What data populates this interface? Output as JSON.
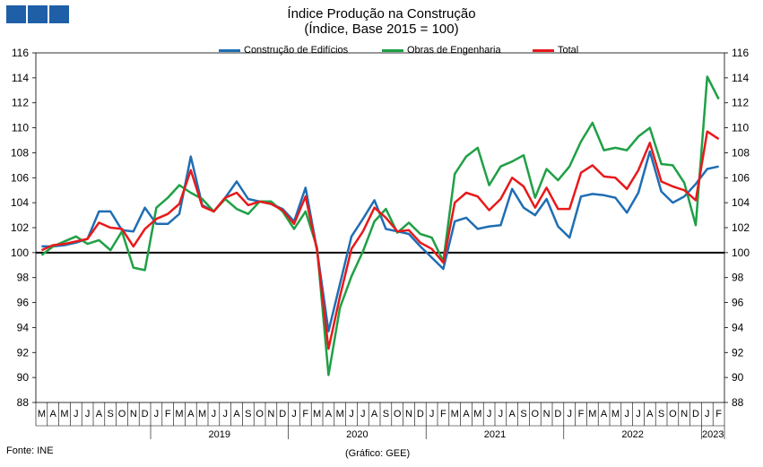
{
  "logo": {
    "color": "#1f5fa8",
    "squares": 3
  },
  "chart_data": {
    "type": "line",
    "title": "Índice Produção na Construção",
    "subtitle": "(Índice, Base 2015 = 100)",
    "ylim": [
      88,
      116
    ],
    "yticks": [
      "88",
      "90",
      "92",
      "94",
      "96",
      "98",
      "100",
      "102",
      "104",
      "106",
      "108",
      "110",
      "112",
      "114",
      "116"
    ],
    "reference_line": 100,
    "month_labels": [
      "M",
      "A",
      "M",
      "J",
      "J",
      "A",
      "S",
      "O",
      "N",
      "D",
      "J",
      "F",
      "M",
      "A",
      "M",
      "J",
      "J",
      "A",
      "S",
      "O",
      "N",
      "D",
      "J",
      "F",
      "M",
      "A",
      "M",
      "J",
      "J",
      "A",
      "S",
      "O",
      "N",
      "D",
      "J",
      "F",
      "M",
      "A",
      "M",
      "J",
      "J",
      "A",
      "S",
      "O",
      "N",
      "D",
      "J",
      "F",
      "M",
      "A",
      "M",
      "J",
      "J",
      "A",
      "S",
      "O",
      "N",
      "D",
      "J",
      "F"
    ],
    "years": [
      {
        "label": "2019",
        "start": 10,
        "end": 21
      },
      {
        "label": "2020",
        "start": 22,
        "end": 33
      },
      {
        "label": "2021",
        "start": 34,
        "end": 45
      },
      {
        "label": "2022",
        "start": 46,
        "end": 57
      },
      {
        "label": "2023",
        "start": 58,
        "end": 59
      }
    ],
    "series": [
      {
        "name": "Construção de Edifícios",
        "color": "#1f6eb3",
        "values": [
          100.5,
          100.5,
          100.6,
          100.8,
          101.1,
          103.3,
          103.3,
          101.8,
          101.7,
          103.6,
          102.3,
          102.3,
          103.1,
          107.7,
          103.8,
          103.3,
          104.4,
          105.7,
          104.3,
          104.1,
          103.9,
          103.5,
          102.5,
          105.2,
          100.2,
          93.7,
          97.5,
          101.3,
          102.7,
          104.2,
          101.9,
          101.7,
          101.5,
          100.5,
          99.6,
          98.7,
          102.5,
          102.8,
          101.9,
          102.1,
          102.2,
          105.1,
          103.6,
          103.0,
          104.3,
          102.1,
          101.2,
          104.5,
          104.7,
          104.6,
          104.4,
          103.2,
          104.8,
          108.1,
          104.9,
          104.0,
          104.5,
          105.5,
          106.7,
          106.9
        ]
      },
      {
        "name": "Obras de Engenharia",
        "color": "#1fa046",
        "values": [
          99.8,
          100.5,
          100.9,
          101.3,
          100.7,
          101.0,
          100.2,
          101.7,
          98.8,
          98.6,
          103.6,
          104.4,
          105.4,
          104.8,
          104.3,
          103.3,
          104.3,
          103.5,
          103.1,
          104.1,
          104.1,
          103.3,
          101.9,
          103.3,
          100.4,
          90.2,
          95.6,
          98.1,
          100.1,
          102.5,
          103.5,
          101.6,
          102.4,
          101.5,
          101.2,
          99.3,
          106.3,
          107.7,
          108.4,
          105.4,
          106.9,
          107.3,
          107.8,
          104.4,
          106.7,
          105.8,
          106.9,
          108.9,
          110.4,
          108.2,
          108.4,
          108.2,
          109.3,
          110.0,
          107.1,
          107.0,
          105.6,
          102.2,
          114.1,
          112.3
        ]
      },
      {
        "name": "Total",
        "color": "#e8191b",
        "values": [
          100.2,
          100.6,
          100.7,
          100.9,
          101.1,
          102.4,
          102.0,
          101.9,
          100.5,
          101.9,
          102.7,
          103.1,
          103.9,
          106.6,
          103.7,
          103.3,
          104.4,
          104.8,
          103.8,
          104.1,
          103.9,
          103.4,
          102.3,
          104.5,
          100.2,
          92.3,
          96.5,
          100.3,
          101.7,
          103.6,
          102.8,
          101.7,
          101.8,
          100.8,
          100.3,
          99.2,
          104.0,
          104.8,
          104.5,
          103.4,
          104.3,
          106.0,
          105.3,
          103.6,
          105.2,
          103.5,
          103.5,
          106.4,
          107.0,
          106.1,
          106.0,
          105.1,
          106.6,
          108.8,
          105.7,
          105.3,
          105.0,
          104.2,
          109.7,
          109.1
        ]
      }
    ]
  },
  "footer": {
    "source": "Fonte: INE",
    "credit": "(Gráfico: GEE)"
  }
}
